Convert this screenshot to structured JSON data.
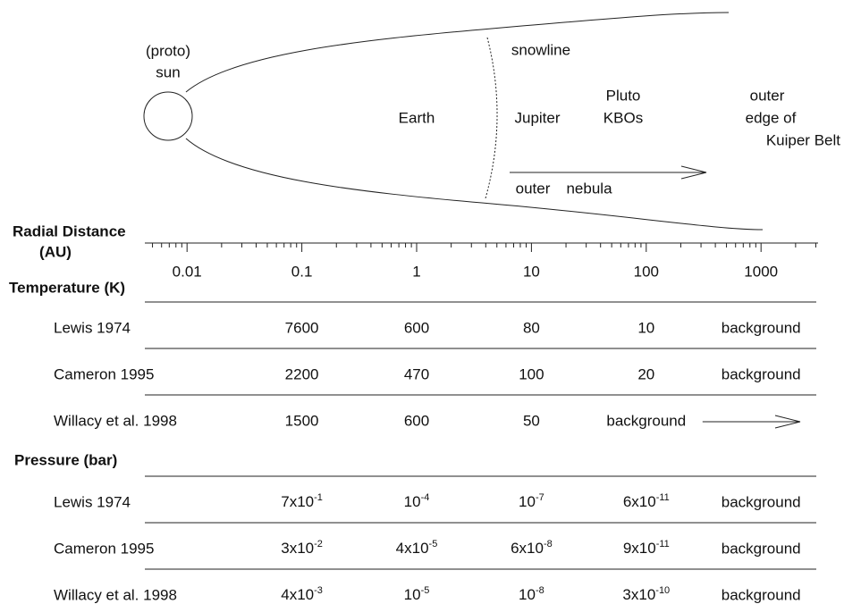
{
  "sun_label": [
    "(proto)",
    "sun"
  ],
  "regions": {
    "snowline": "snowline",
    "earth": "Earth",
    "jupiter": "Jupiter",
    "pluto": "Pluto",
    "kbos": "KBOs",
    "outer_edge": [
      "outer",
      "edge of",
      "Kuiper Belt"
    ],
    "outer_nebula": [
      "outer",
      "nebula"
    ]
  },
  "axis": {
    "title": [
      "Radial Distance",
      "(AU)"
    ],
    "ticks": [
      0.01,
      0.1,
      1,
      10,
      100,
      1000
    ]
  },
  "temperature": {
    "title": "Temperature (K)",
    "rows": [
      {
        "source": "Lewis 1974",
        "values": [
          7600,
          600,
          80,
          10,
          "background"
        ]
      },
      {
        "source": "Cameron 1995",
        "values": [
          2200,
          470,
          100,
          20,
          "background"
        ]
      },
      {
        "source": "Willacy et al. 1998",
        "values": [
          1500,
          600,
          50,
          "background"
        ]
      }
    ]
  },
  "pressure": {
    "title": "Pressure (bar)",
    "rows": [
      {
        "source": "Lewis 1974",
        "values": [
          {
            "base": "7x10",
            "exp": "-1"
          },
          {
            "base": "10",
            "exp": "-4"
          },
          {
            "base": "10",
            "exp": "-7"
          },
          {
            "base": "6x10",
            "exp": "-11"
          },
          "background"
        ]
      },
      {
        "source": "Cameron 1995",
        "values": [
          {
            "base": "3x10",
            "exp": "-2"
          },
          {
            "base": "4x10",
            "exp": "-5"
          },
          {
            "base": "6x10",
            "exp": "-8"
          },
          {
            "base": "9x10",
            "exp": "-11"
          },
          "background"
        ]
      },
      {
        "source": "Willacy et al. 1998",
        "values": [
          {
            "base": "4x10",
            "exp": "-3"
          },
          {
            "base": "10",
            "exp": "-5"
          },
          {
            "base": "10",
            "exp": "-8"
          },
          {
            "base": "3x10",
            "exp": "-10"
          },
          "background"
        ]
      }
    ]
  }
}
